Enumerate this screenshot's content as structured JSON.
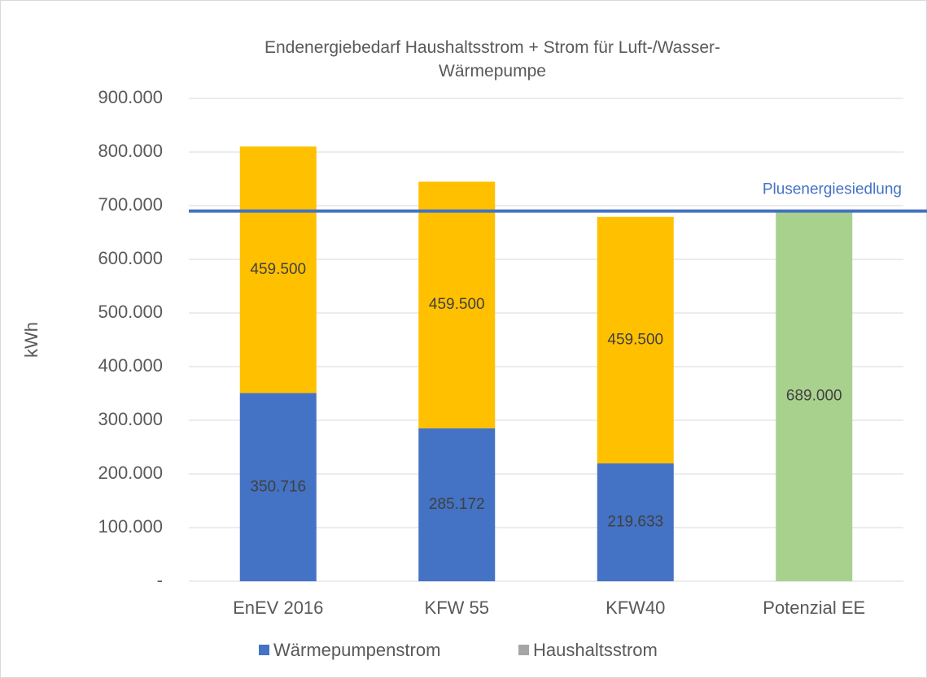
{
  "chart_data": {
    "type": "stacked_bar",
    "title": "Endenergiebedarf Haushaltsstrom + Strom für Luft-/Wasser-Wärmepumpe",
    "y_label": "kWh",
    "categories": [
      "EnEV 2016",
      "KFW 55",
      "KFW40",
      "Potenzial EE"
    ],
    "series": [
      {
        "name": "Wärmepumpenstrom",
        "color": "#4472c4",
        "values": [
          350716,
          285172,
          219633,
          null
        ],
        "value_labels": [
          "350.716",
          "285.172",
          "219.633",
          null
        ]
      },
      {
        "name": "Haushaltsstrom",
        "color": "#ffc000",
        "legend_color": "#a5a5a5",
        "values": [
          459500,
          459500,
          459500,
          null
        ],
        "value_labels": [
          "459.500",
          "459.500",
          "459.500",
          null
        ]
      },
      {
        "color": "#a9d18e",
        "values": [
          null,
          null,
          null,
          689000
        ],
        "value_labels": [
          null,
          null,
          null,
          "689.000"
        ]
      }
    ],
    "reference_line": {
      "label": "Plusenergiesiedlung",
      "value": 690000,
      "color": "#4472c4"
    },
    "ylim": [
      0,
      900000
    ],
    "yticks": [
      {
        "value": 0,
        "label": "-"
      },
      {
        "value": 100000,
        "label": "100.000"
      },
      {
        "value": 200000,
        "label": "200.000"
      },
      {
        "value": 300000,
        "label": "300.000"
      },
      {
        "value": 400000,
        "label": "400.000"
      },
      {
        "value": 500000,
        "label": "500.000"
      },
      {
        "value": 600000,
        "label": "600.000"
      },
      {
        "value": 700000,
        "label": "700.000"
      },
      {
        "value": 800000,
        "label": "800.000"
      },
      {
        "value": 900000,
        "label": "900.000"
      }
    ],
    "grid": true,
    "legend": "bottom"
  }
}
